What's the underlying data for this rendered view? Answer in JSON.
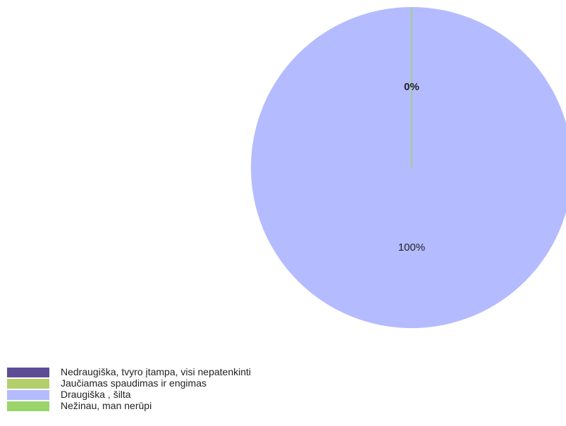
{
  "chart_data": {
    "type": "pie",
    "categories": [
      "Nedraugiška, tvyro įtampa, visi nepatenkinti",
      "Jaučiamas spaudimas ir engimas",
      "Draugiška ,  šilta",
      "Nežinau, man nerūpi"
    ],
    "values": [
      0,
      0,
      100,
      0
    ],
    "value_labels": [
      null,
      "0%",
      "100%",
      null
    ],
    "colors": [
      "#5c4d96",
      "#b3cf6b",
      "#b4bbff",
      "#9ad46b"
    ],
    "legend": "bottom-left"
  }
}
